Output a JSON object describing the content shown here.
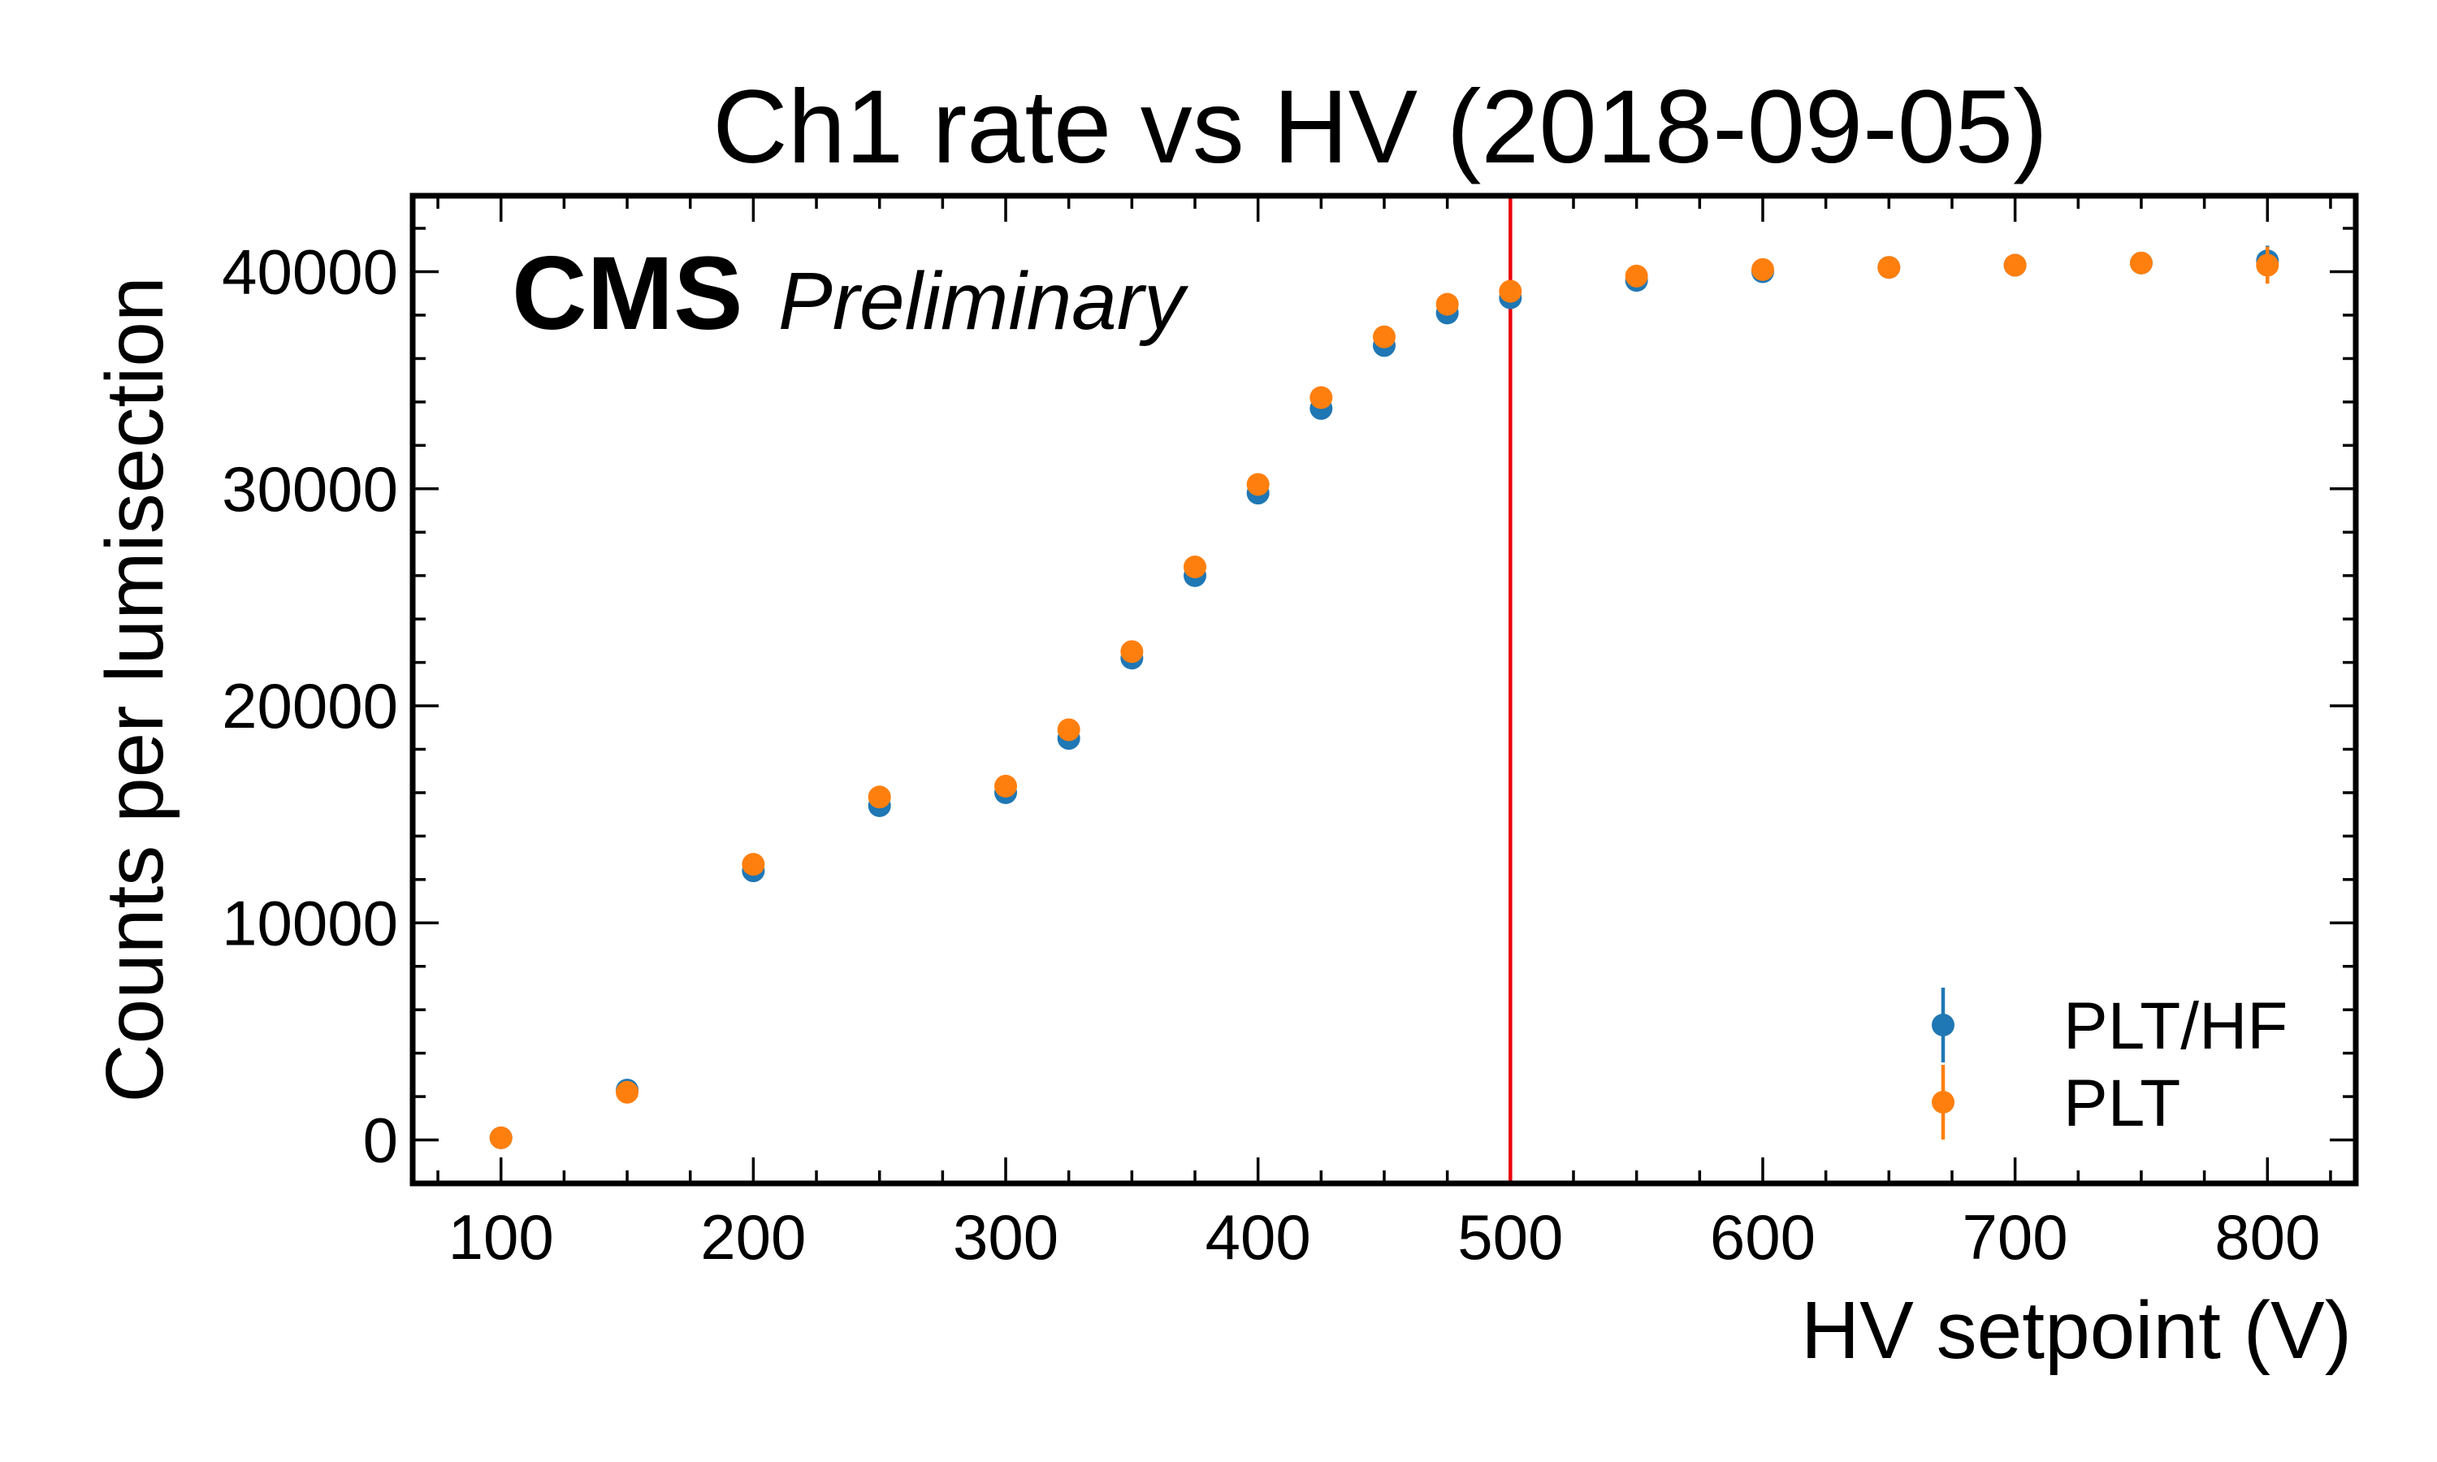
{
  "chart_data": {
    "type": "scatter",
    "title": "Ch1 rate vs HV (2018-09-05)",
    "xlabel": "HV setpoint (V)",
    "ylabel": "Counts per lumisection",
    "xlim": [
      65,
      835
    ],
    "ylim": [
      -2000,
      43500
    ],
    "x_ticks": [
      100,
      200,
      300,
      400,
      500,
      600,
      700,
      800
    ],
    "y_ticks": [
      0,
      10000,
      20000,
      30000,
      40000
    ],
    "x_tick_labels": [
      "100",
      "200",
      "300",
      "400",
      "500",
      "600",
      "700",
      "800"
    ],
    "y_tick_labels": [
      "0",
      "10000",
      "20000",
      "30000",
      "40000"
    ],
    "grid": false,
    "legend_position": "bottom-right",
    "annotation": {
      "experiment": "CMS",
      "status": "Preliminary"
    },
    "vertical_line": {
      "x": 500,
      "color": "#e8000b"
    },
    "x": [
      100,
      150,
      200,
      250,
      300,
      325,
      350,
      375,
      400,
      425,
      450,
      475,
      500,
      550,
      600,
      650,
      700,
      750,
      800
    ],
    "series": [
      {
        "name": "PLT/HF",
        "color": "#1f77b4",
        "values": [
          100,
          2300,
          12400,
          15400,
          16000,
          18500,
          22200,
          26000,
          29800,
          33700,
          36600,
          38100,
          38800,
          39600,
          40000,
          40200,
          40300,
          40400,
          40500
        ],
        "errors": [
          50,
          100,
          150,
          150,
          150,
          150,
          150,
          150,
          200,
          200,
          200,
          200,
          250,
          250,
          300,
          300,
          300,
          350,
          700
        ]
      },
      {
        "name": "PLT",
        "color": "#ff7f0e",
        "values": [
          100,
          2200,
          12700,
          15800,
          16300,
          18900,
          22500,
          26400,
          30200,
          34200,
          37000,
          38500,
          39100,
          39800,
          40100,
          40200,
          40300,
          40400,
          40300
        ],
        "errors": [
          50,
          100,
          150,
          150,
          150,
          150,
          150,
          150,
          200,
          200,
          200,
          200,
          250,
          250,
          300,
          300,
          300,
          350,
          850
        ]
      }
    ]
  }
}
